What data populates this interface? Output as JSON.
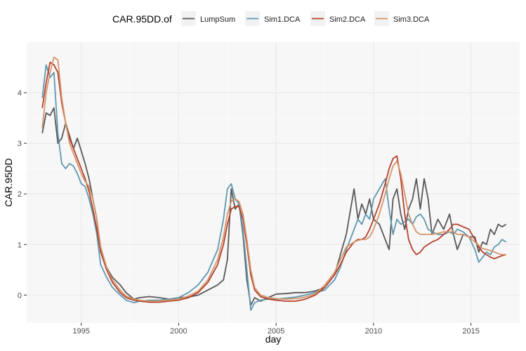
{
  "chart_data": {
    "type": "line",
    "xlabel": "day",
    "ylabel": "CAR.95DD",
    "legend_title": "CAR.95DD.of",
    "legend_position": "top",
    "xlim": [
      1992.2,
      2017.5
    ],
    "ylim": [
      -0.55,
      5.0
    ],
    "xticks": [
      1995,
      2000,
      2005,
      2010,
      2015
    ],
    "yticks": [
      0,
      1,
      2,
      3,
      4
    ],
    "grid": true,
    "series": [
      {
        "name": "LumpSum",
        "color": "#585858",
        "x": [
          1993.0,
          1993.2,
          1993.4,
          1993.6,
          1993.8,
          1994.0,
          1994.2,
          1994.4,
          1994.6,
          1994.8,
          1995.0,
          1995.2,
          1995.4,
          1995.6,
          1995.8,
          1996.0,
          1996.3,
          1996.6,
          1997.0,
          1997.3,
          1997.7,
          1998.0,
          1998.5,
          1999.0,
          1999.5,
          2000.0,
          2000.5,
          2001.0,
          2001.5,
          2002.0,
          2002.3,
          2002.5,
          2002.7,
          2002.9,
          2003.1,
          2003.3,
          2003.5,
          2003.7,
          2003.9,
          2004.2,
          2004.6,
          2005.0,
          2005.5,
          2006.0,
          2006.5,
          2007.0,
          2007.5,
          2008.0,
          2008.3,
          2008.6,
          2009.0,
          2009.2,
          2009.4,
          2009.6,
          2009.8,
          2010.0,
          2010.3,
          2010.6,
          2010.8,
          2011.0,
          2011.2,
          2011.4,
          2011.6,
          2011.8,
          2012.0,
          2012.2,
          2012.4,
          2012.6,
          2012.8,
          2013.0,
          2013.3,
          2013.6,
          2013.9,
          2014.1,
          2014.3,
          2014.6,
          2014.9,
          2015.2,
          2015.4,
          2015.6,
          2015.8,
          2016.0,
          2016.2,
          2016.4,
          2016.6,
          2016.8
        ],
        "y": [
          3.2,
          3.6,
          3.55,
          3.7,
          3.0,
          3.1,
          3.4,
          3.15,
          2.9,
          3.1,
          2.85,
          2.6,
          2.3,
          1.9,
          1.5,
          0.85,
          0.55,
          0.35,
          0.2,
          0.05,
          -0.08,
          -0.05,
          -0.03,
          -0.05,
          -0.08,
          -0.05,
          -0.04,
          0.0,
          0.1,
          0.2,
          0.3,
          0.7,
          2.1,
          1.7,
          1.8,
          1.2,
          0.3,
          -0.2,
          -0.05,
          -0.12,
          -0.05,
          0.02,
          0.03,
          0.05,
          0.05,
          0.08,
          0.15,
          0.4,
          0.8,
          1.2,
          2.1,
          1.5,
          1.8,
          1.6,
          1.9,
          1.5,
          1.4,
          1.1,
          0.9,
          1.9,
          2.1,
          1.6,
          1.3,
          1.7,
          1.9,
          2.3,
          1.7,
          2.3,
          1.9,
          1.2,
          1.5,
          1.3,
          1.6,
          1.2,
          0.9,
          1.2,
          1.15,
          1.15,
          0.85,
          1.05,
          1.0,
          1.3,
          1.2,
          1.4,
          1.35,
          1.4
        ]
      },
      {
        "name": "Sim1.DCA",
        "color": "#5f98ae",
        "x": [
          1993.0,
          1993.2,
          1993.4,
          1993.6,
          1993.8,
          1994.0,
          1994.2,
          1994.4,
          1994.6,
          1994.8,
          1995.0,
          1995.2,
          1995.4,
          1995.6,
          1995.8,
          1996.0,
          1996.3,
          1996.6,
          1997.0,
          1997.3,
          1997.7,
          1998.0,
          1998.5,
          1999.0,
          1999.5,
          2000.0,
          2000.5,
          2001.0,
          2001.5,
          2002.0,
          2002.3,
          2002.5,
          2002.7,
          2002.9,
          2003.1,
          2003.3,
          2003.5,
          2003.7,
          2003.9,
          2004.2,
          2004.6,
          2005.0,
          2005.5,
          2006.0,
          2006.5,
          2007.0,
          2007.5,
          2008.0,
          2008.3,
          2008.6,
          2009.0,
          2009.2,
          2009.4,
          2009.6,
          2009.8,
          2010.0,
          2010.3,
          2010.6,
          2010.8,
          2011.0,
          2011.2,
          2011.4,
          2011.6,
          2011.8,
          2012.0,
          2012.2,
          2012.4,
          2012.6,
          2012.8,
          2013.0,
          2013.3,
          2013.6,
          2013.9,
          2014.1,
          2014.3,
          2014.6,
          2014.9,
          2015.2,
          2015.4,
          2015.6,
          2015.8,
          2016.0,
          2016.2,
          2016.4,
          2016.6,
          2016.8
        ],
        "y": [
          3.9,
          4.55,
          4.3,
          4.4,
          3.2,
          2.6,
          2.5,
          2.6,
          2.55,
          2.4,
          2.2,
          2.15,
          1.9,
          1.6,
          1.2,
          0.6,
          0.35,
          0.15,
          0.0,
          -0.1,
          -0.15,
          -0.12,
          -0.1,
          -0.1,
          -0.08,
          -0.05,
          0.05,
          0.2,
          0.45,
          0.9,
          1.5,
          2.1,
          2.2,
          1.9,
          1.8,
          1.3,
          0.5,
          -0.3,
          -0.15,
          -0.1,
          -0.08,
          -0.08,
          -0.06,
          -0.04,
          0.0,
          0.05,
          0.1,
          0.3,
          0.55,
          0.9,
          1.3,
          1.5,
          1.4,
          1.6,
          1.5,
          1.9,
          2.1,
          2.3,
          1.7,
          1.2,
          1.5,
          1.4,
          1.45,
          1.5,
          1.4,
          1.55,
          1.6,
          1.5,
          1.3,
          1.25,
          1.2,
          1.2,
          1.25,
          1.2,
          1.3,
          1.25,
          1.15,
          0.9,
          0.65,
          0.75,
          0.85,
          0.8,
          0.95,
          1.0,
          1.1,
          1.05
        ]
      },
      {
        "name": "Sim2.DCA",
        "color": "#b5402c",
        "x": [
          1993.0,
          1993.2,
          1993.4,
          1993.6,
          1993.8,
          1994.0,
          1994.2,
          1994.4,
          1994.6,
          1994.8,
          1995.0,
          1995.2,
          1995.4,
          1995.6,
          1995.8,
          1996.0,
          1996.3,
          1996.6,
          1997.0,
          1997.3,
          1997.7,
          1998.0,
          1998.5,
          1999.0,
          1999.5,
          2000.0,
          2000.5,
          2001.0,
          2001.5,
          2002.0,
          2002.3,
          2002.5,
          2002.7,
          2002.9,
          2003.1,
          2003.3,
          2003.5,
          2003.7,
          2003.9,
          2004.2,
          2004.6,
          2005.0,
          2005.5,
          2006.0,
          2006.5,
          2007.0,
          2007.5,
          2008.0,
          2008.3,
          2008.6,
          2009.0,
          2009.2,
          2009.4,
          2009.6,
          2009.8,
          2010.0,
          2010.3,
          2010.6,
          2010.8,
          2011.0,
          2011.2,
          2011.4,
          2011.6,
          2011.8,
          2012.0,
          2012.2,
          2012.4,
          2012.6,
          2012.8,
          2013.0,
          2013.3,
          2013.6,
          2013.9,
          2014.1,
          2014.3,
          2014.6,
          2014.9,
          2015.2,
          2015.4,
          2015.6,
          2015.8,
          2016.0,
          2016.2,
          2016.4,
          2016.6,
          2016.8
        ],
        "y": [
          3.7,
          4.2,
          4.6,
          4.55,
          4.4,
          3.8,
          3.4,
          3.1,
          2.9,
          2.7,
          2.5,
          2.3,
          2.05,
          1.7,
          1.3,
          0.85,
          0.5,
          0.25,
          0.05,
          -0.05,
          -0.1,
          -0.12,
          -0.14,
          -0.14,
          -0.12,
          -0.1,
          -0.05,
          0.05,
          0.25,
          0.6,
          1.0,
          1.4,
          1.7,
          1.75,
          1.75,
          1.5,
          1.0,
          0.4,
          0.1,
          -0.03,
          -0.08,
          -0.1,
          -0.12,
          -0.12,
          -0.08,
          0.0,
          0.15,
          0.4,
          0.6,
          0.85,
          1.05,
          1.1,
          1.1,
          1.15,
          1.3,
          1.5,
          1.8,
          2.2,
          2.5,
          2.7,
          2.75,
          2.3,
          1.6,
          1.1,
          0.9,
          0.8,
          0.85,
          0.95,
          1.0,
          1.05,
          1.1,
          1.2,
          1.3,
          1.4,
          1.4,
          1.35,
          1.3,
          1.1,
          0.95,
          0.85,
          0.8,
          0.75,
          0.72,
          0.75,
          0.78,
          0.8
        ]
      },
      {
        "name": "Sim3.DCA",
        "color": "#d4956a",
        "x": [
          1993.0,
          1993.2,
          1993.4,
          1993.6,
          1993.8,
          1994.0,
          1994.2,
          1994.4,
          1994.6,
          1994.8,
          1995.0,
          1995.2,
          1995.4,
          1995.6,
          1995.8,
          1996.0,
          1996.3,
          1996.6,
          1997.0,
          1997.3,
          1997.7,
          1998.0,
          1998.5,
          1999.0,
          1999.5,
          2000.0,
          2000.5,
          2001.0,
          2001.5,
          2002.0,
          2002.3,
          2002.5,
          2002.7,
          2002.9,
          2003.1,
          2003.3,
          2003.5,
          2003.7,
          2003.9,
          2004.2,
          2004.6,
          2005.0,
          2005.5,
          2006.0,
          2006.5,
          2007.0,
          2007.5,
          2008.0,
          2008.3,
          2008.6,
          2009.0,
          2009.2,
          2009.4,
          2009.6,
          2009.8,
          2010.0,
          2010.3,
          2010.6,
          2010.8,
          2011.0,
          2011.2,
          2011.4,
          2011.6,
          2011.8,
          2012.0,
          2012.2,
          2012.4,
          2012.6,
          2012.8,
          2013.0,
          2013.3,
          2013.6,
          2013.9,
          2014.1,
          2014.3,
          2014.6,
          2014.9,
          2015.2,
          2015.4,
          2015.6,
          2015.8,
          2016.0,
          2016.2,
          2016.4,
          2016.6,
          2016.8
        ],
        "y": [
          3.3,
          4.0,
          4.4,
          4.7,
          4.65,
          3.9,
          3.4,
          3.0,
          2.8,
          2.6,
          2.4,
          2.25,
          2.15,
          1.9,
          1.5,
          0.95,
          0.55,
          0.3,
          0.1,
          -0.02,
          -0.08,
          -0.1,
          -0.12,
          -0.12,
          -0.1,
          -0.08,
          -0.02,
          0.08,
          0.3,
          0.7,
          1.15,
          1.6,
          1.85,
          1.9,
          1.85,
          1.6,
          1.1,
          0.5,
          0.15,
          0.0,
          -0.05,
          -0.07,
          -0.08,
          -0.07,
          -0.04,
          0.02,
          0.2,
          0.45,
          0.7,
          0.95,
          1.05,
          1.08,
          1.1,
          1.1,
          1.15,
          1.3,
          1.6,
          2.0,
          2.3,
          2.55,
          2.65,
          2.4,
          2.0,
          1.6,
          1.4,
          1.25,
          1.2,
          1.2,
          1.2,
          1.2,
          1.22,
          1.25,
          1.25,
          1.25,
          1.2,
          1.2,
          1.15,
          1.05,
          0.98,
          0.92,
          0.9,
          0.88,
          0.85,
          0.82,
          0.8,
          0.8
        ]
      }
    ]
  }
}
